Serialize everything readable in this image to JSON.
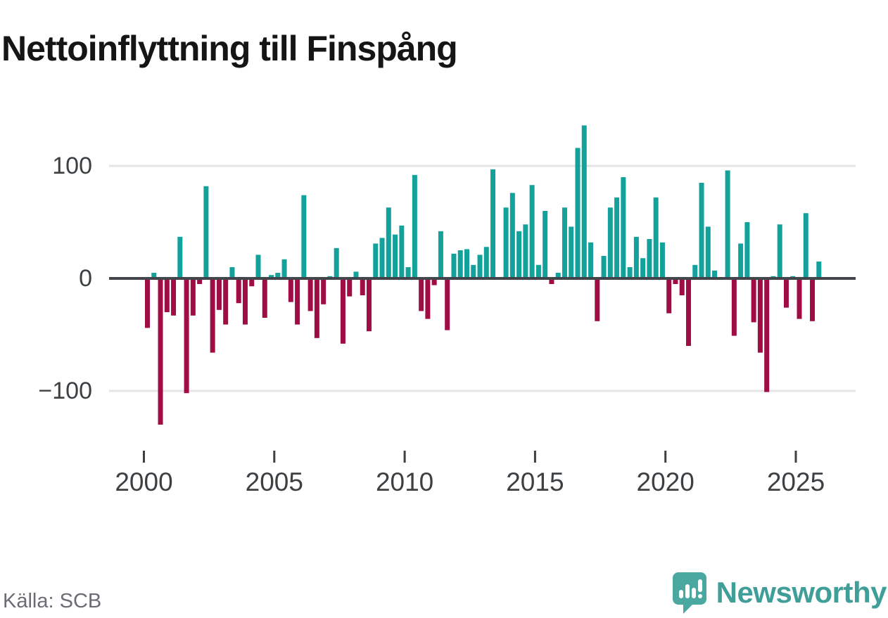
{
  "title": "Nettoinflyttning till Finspång",
  "source": {
    "label": "Källa: SCB"
  },
  "branding": {
    "name": "Newsworthy",
    "icon": "newsworthy-speech-bubble-chart-icon"
  },
  "colors": {
    "positive_bar": "#12a29b",
    "negative_bar": "#a00d45",
    "zero_line": "#42464a",
    "gridline": "#e4e4e4",
    "axis_text": "#3d4043",
    "title_text": "#151515",
    "source_text": "#6c6c75",
    "brand_teal": "#3f9e97",
    "brand_icon_teal": "#4ba8a1"
  },
  "chart_data": {
    "type": "bar",
    "title": "Nettoinflyttning till Finspång",
    "frequency": "quarterly",
    "start_period": "2000 Q1",
    "end_period": "2025 Q4",
    "xlabel": "",
    "ylabel": "",
    "ylim": [
      -140,
      150
    ],
    "grid": "horizontal-only",
    "legend": "none",
    "y_ticks": [
      {
        "label": "100",
        "value": 100
      },
      {
        "label": "0",
        "value": 0
      },
      {
        "label": "−100",
        "value": -100
      }
    ],
    "y_gridline_values": [
      100,
      -100
    ],
    "x_ticks": [
      {
        "label": "2000",
        "year": 2000
      },
      {
        "label": "2005",
        "year": 2005
      },
      {
        "label": "2010",
        "year": 2010
      },
      {
        "label": "2015",
        "year": 2015
      },
      {
        "label": "2020",
        "year": 2020
      },
      {
        "label": "2025",
        "year": 2025
      }
    ],
    "series": [
      {
        "name": "Nettoinflyttning till Finspång",
        "values": [
          -44,
          5,
          -130,
          -30,
          -33,
          37,
          -102,
          -33,
          -5,
          82,
          -66,
          -28,
          -41,
          10,
          -22,
          -41,
          -7,
          21,
          -35,
          3,
          5,
          17,
          -21,
          -41,
          74,
          -29,
          -53,
          -23,
          2,
          27,
          -58,
          -16,
          6,
          -15,
          -47,
          31,
          36,
          63,
          39,
          47,
          10,
          92,
          -29,
          -36,
          -6,
          42,
          -46,
          22,
          25,
          26,
          12,
          21,
          28,
          97,
          0,
          63,
          76,
          42,
          48,
          83,
          12,
          60,
          -5,
          5,
          63,
          46,
          116,
          136,
          32,
          -38,
          20,
          63,
          72,
          90,
          10,
          37,
          18,
          35,
          72,
          32,
          -31,
          -5,
          -15,
          -60,
          12,
          85,
          46,
          7,
          0,
          96,
          -51,
          31,
          50,
          -39,
          -66,
          -101,
          2,
          48,
          -26,
          2,
          -36,
          58,
          -38,
          15
        ]
      }
    ]
  }
}
